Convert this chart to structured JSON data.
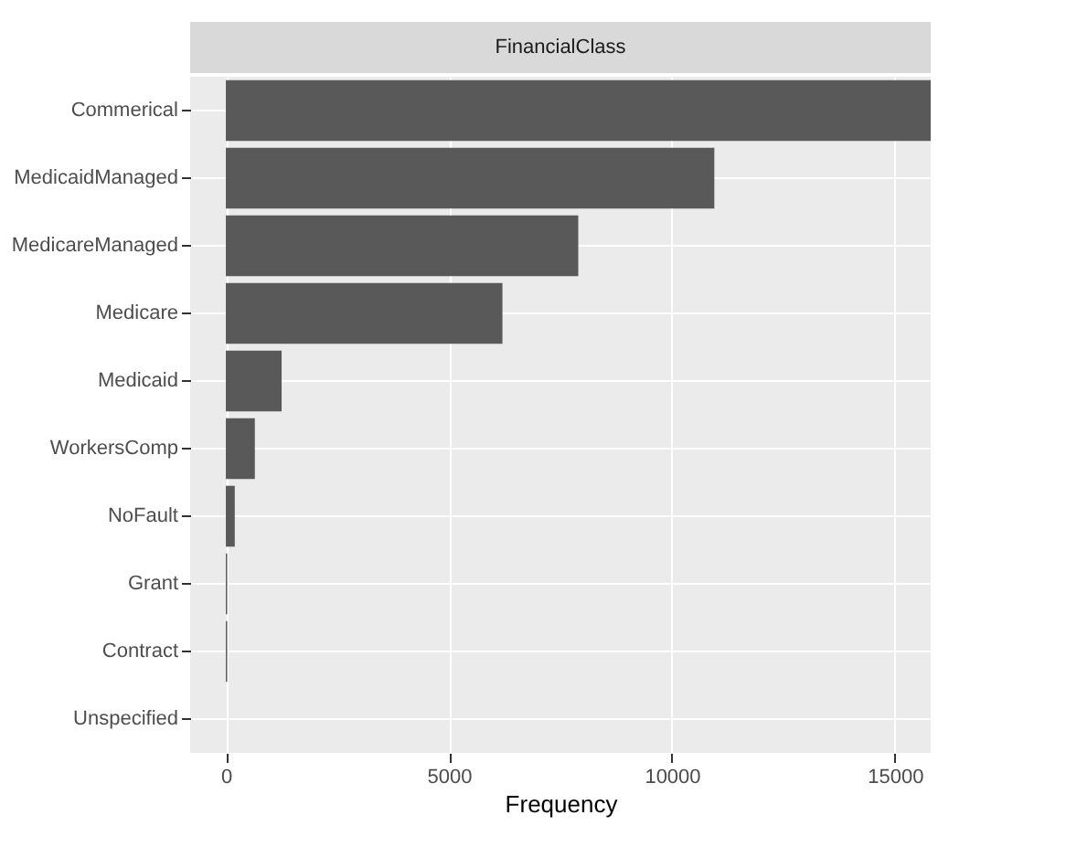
{
  "chart_data": {
    "type": "bar",
    "orientation": "horizontal",
    "title": "FinancialClass",
    "xlabel": "Frequency",
    "categories": [
      "Commerical",
      "MedicaidManaged",
      "MedicareManaged",
      "Medicare",
      "Medicaid",
      "WorkersComp",
      "NoFault",
      "Grant",
      "Contract",
      "Unspecified"
    ],
    "values": [
      15800,
      10950,
      7900,
      6200,
      1250,
      650,
      200,
      30,
      30,
      0
    ],
    "color": "#595959",
    "xlim": [
      -800,
      15800
    ],
    "xticks": [
      0,
      5000,
      10000,
      15000
    ],
    "grid": true
  }
}
